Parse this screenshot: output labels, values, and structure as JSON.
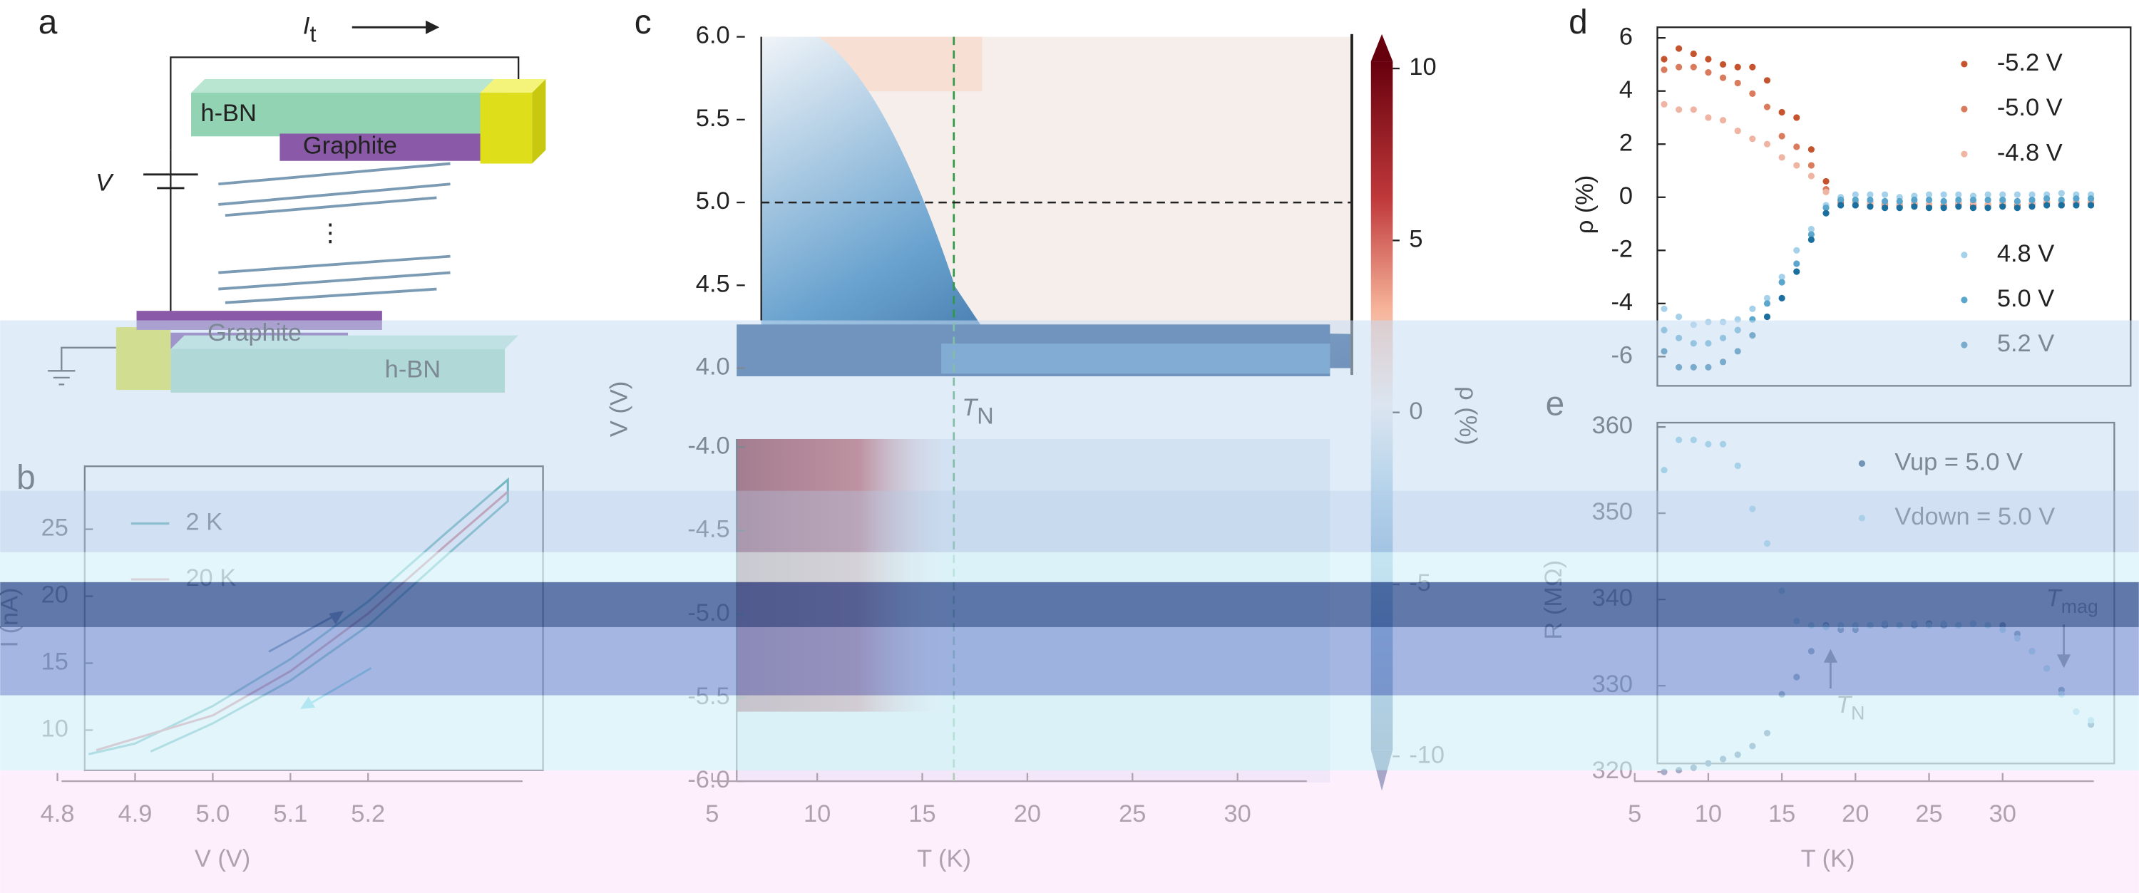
{
  "panel_labels": [
    "a",
    "b",
    "c",
    "d",
    "e"
  ],
  "diagram": {
    "current": {
      "main": "I",
      "sub": "t"
    },
    "voltage": "V",
    "top_hbn": "h-BN",
    "top_graphite": "Graphite",
    "bottom_graphite": "Graphite",
    "bottom_hbn": "h-BN",
    "ellipsis": "⋮"
  },
  "chart_data": [
    {
      "type": "line",
      "xlabel": "V (V)",
      "ylabel": "I (nA)",
      "xlim": [
        4.8,
        5.42
      ],
      "ylim": [
        7,
        29.7
      ],
      "xticks": [
        4.8,
        4.9,
        {
          "value": 5,
          "label": "5.0"
        },
        5.1,
        5.2
      ],
      "yticks": [
        10,
        15,
        20,
        25
      ],
      "series": [
        {
          "name": "2 K",
          "color": "#138d8d",
          "x": [
            4.92,
            5.0,
            5.1,
            5.2,
            5.3,
            5.38,
            5.38,
            5.3,
            5.2,
            5.1,
            5.0,
            4.9,
            4.84
          ],
          "values": [
            8.4,
            10.5,
            13.7,
            17.8,
            23.0,
            27.1,
            28.7,
            24.7,
            19.6,
            15.3,
            11.8,
            9.0,
            8.2
          ]
        },
        {
          "name": "20 K",
          "color": "#c4384a",
          "x": [
            4.85,
            5.0,
            5.1,
            5.2,
            5.3,
            5.38
          ],
          "values": [
            8.5,
            11.1,
            14.4,
            18.7,
            23.8,
            27.8
          ]
        }
      ]
    },
    {
      "type": "heatmap",
      "xlabel": "T (K)",
      "ylabel": "V (V)",
      "zlabel": "ρ (%)",
      "xlim": [
        5,
        34.4
      ],
      "xticks": [
        5,
        10,
        15,
        20,
        25,
        30
      ],
      "ylim_upper": [
        4,
        6
      ],
      "yticks_upper": [
        {
          "value": 4,
          "label": "4.0"
        },
        4.5,
        {
          "value": 5,
          "label": "5.0"
        },
        5.5,
        {
          "value": 6,
          "label": "6.0"
        }
      ],
      "ylim_lower": [
        -6,
        -4
      ],
      "yticks_lower": [
        {
          "value": -6,
          "label": "-6.0"
        },
        -5.5,
        {
          "value": -5,
          "label": "-5.0"
        },
        -4.5,
        {
          "value": -4,
          "label": "-4.0"
        }
      ],
      "zlim": [
        -11,
        11
      ],
      "zticks": [
        10,
        5,
        0,
        -5,
        -10
      ],
      "tn": 16.5,
      "hline": 5,
      "tn_label": {
        "main": "T",
        "sub": "N"
      }
    },
    {
      "type": "scatter",
      "ylabel": "ρ (%)",
      "xlim": [
        4.5,
        38.7
      ],
      "ylim": [
        -7.1,
        6.4
      ],
      "yticks": [
        6,
        4,
        2,
        0,
        -2,
        -4,
        -6
      ],
      "x": [
        7,
        8,
        9,
        10,
        11,
        12,
        13,
        14,
        15,
        16,
        17,
        18,
        19,
        20,
        21,
        22,
        23,
        24,
        25,
        26,
        27,
        28,
        29,
        30,
        31,
        32,
        33,
        34,
        35,
        36
      ],
      "series": [
        {
          "name": "-5.2 V",
          "color": "#c4532e",
          "values": [
            5.2,
            5.6,
            5.4,
            5.2,
            5.0,
            4.9,
            4.9,
            4.4,
            3.2,
            3.0,
            1.8,
            0.6,
            -0.1,
            -0.2,
            -0.2,
            -0.25,
            -0.3,
            -0.25,
            -0.3,
            -0.3,
            -0.25,
            -0.3,
            -0.3,
            -0.3,
            -0.3,
            -0.25,
            -0.2,
            -0.25,
            -0.2,
            -0.2
          ]
        },
        {
          "name": "-5.0 V",
          "color": "#d97b5c",
          "values": [
            4.8,
            4.9,
            4.9,
            4.7,
            4.5,
            4.3,
            3.9,
            3.4,
            2.3,
            1.9,
            1.2,
            0.3,
            -0.2,
            -0.3,
            -0.3,
            -0.3,
            -0.35,
            -0.3,
            -0.35,
            -0.35,
            -0.3,
            -0.35,
            -0.35,
            -0.3,
            -0.35,
            -0.3,
            -0.25,
            -0.3,
            -0.25,
            -0.25
          ]
        },
        {
          "name": "-4.8 V",
          "color": "#efb4a2",
          "values": [
            3.5,
            3.3,
            3.3,
            3.0,
            2.9,
            2.5,
            2.2,
            2.0,
            1.5,
            1.2,
            0.8,
            0.2,
            -0.1,
            -0.2,
            -0.2,
            -0.2,
            -0.25,
            -0.2,
            -0.25,
            -0.2,
            -0.2,
            -0.2,
            -0.25,
            -0.2,
            -0.2,
            -0.2,
            -0.15,
            -0.2,
            -0.15,
            -0.15
          ]
        },
        {
          "name": "4.8 V",
          "color": "#a6d1ea",
          "values": [
            -4.2,
            -4.5,
            -4.8,
            -4.7,
            -4.7,
            -4.6,
            -4.2,
            -3.8,
            -3.0,
            -2.0,
            -1.2,
            -0.3,
            0.0,
            0.1,
            0.1,
            0.1,
            0.0,
            0.05,
            0.1,
            0.1,
            0.1,
            0.05,
            0.1,
            0.1,
            0.1,
            0.1,
            0.1,
            0.15,
            0.1,
            0.1
          ]
        },
        {
          "name": "5.0 V",
          "color": "#5aa6cc",
          "values": [
            -5.0,
            -5.3,
            -5.5,
            -5.5,
            -5.3,
            -5.0,
            -4.6,
            -4.0,
            -3.2,
            -2.5,
            -1.4,
            -0.4,
            -0.1,
            -0.1,
            -0.1,
            -0.15,
            -0.15,
            -0.1,
            -0.1,
            -0.15,
            -0.1,
            -0.1,
            -0.1,
            -0.1,
            -0.15,
            -0.1,
            -0.05,
            -0.1,
            -0.05,
            -0.05
          ]
        },
        {
          "name": "5.2 V",
          "color": "#1b6f9e",
          "values": [
            -5.8,
            -6.4,
            -6.4,
            -6.4,
            -6.2,
            -5.8,
            -5.2,
            -4.5,
            -3.8,
            -2.8,
            -1.6,
            -0.6,
            -0.3,
            -0.3,
            -0.35,
            -0.4,
            -0.4,
            -0.35,
            -0.4,
            -0.4,
            -0.35,
            -0.4,
            -0.4,
            -0.35,
            -0.4,
            -0.35,
            -0.3,
            -0.3,
            -0.3,
            -0.3
          ]
        }
      ]
    },
    {
      "type": "scatter",
      "xlabel": "T (K)",
      "ylabel": "R (MΩ)",
      "xlim": [
        4.5,
        38.7
      ],
      "ylim": [
        319.4,
        360.5
      ],
      "xticks": [
        5,
        10,
        15,
        20,
        25,
        30
      ],
      "yticks": [
        360,
        350,
        340,
        330,
        320
      ],
      "x": [
        7,
        8,
        9,
        10,
        11,
        12,
        13,
        14,
        15,
        16,
        17,
        18,
        19,
        20,
        21,
        22,
        23,
        24,
        25,
        26,
        27,
        28,
        29,
        30,
        31,
        32,
        33,
        34,
        35,
        36
      ],
      "series": [
        {
          "name": "Vup = 5.0 V",
          "color": "#0d3d6b",
          "values": [
            320,
            320.2,
            320.5,
            321,
            321.5,
            322,
            323,
            324.5,
            329,
            331,
            334,
            337,
            336.5,
            336.5,
            337,
            337,
            337,
            337,
            337.2,
            337,
            337,
            337.2,
            337,
            337,
            336,
            334,
            332,
            329.5,
            327,
            325.5
          ]
        },
        {
          "name": "Vdown = 5.0 V",
          "color": "#7cc4dc",
          "values": [
            355,
            358.5,
            358.5,
            358,
            358,
            355.5,
            350.5,
            346.5,
            341,
            337.5,
            337,
            336.8,
            337,
            337,
            337,
            337.2,
            337,
            337.2,
            337,
            337.2,
            337,
            337.2,
            337,
            336.5,
            335.5,
            334,
            332,
            329,
            327,
            326
          ]
        }
      ],
      "annotations": [
        {
          "main": "T",
          "sub": "N"
        },
        {
          "main": "T",
          "sub": "mag"
        }
      ]
    }
  ]
}
